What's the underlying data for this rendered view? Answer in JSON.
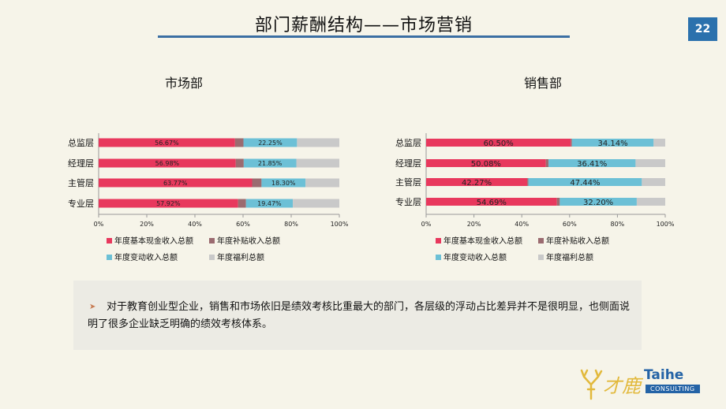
{
  "slide": {
    "title": "部门薪酬结构——市场营销",
    "page_number": "22"
  },
  "note": {
    "text": "对于教育创业型企业，销售和市场依旧是绩效考核比重最大的部门，各层级的浮动占比差异并不是很明显，也侧面说明了很多企业缺乏明确的绩效考核体系。"
  },
  "logo": {
    "cn_text": "才鹿",
    "en_text": "Taihe",
    "sub_text": "CONSULTING"
  },
  "colors": {
    "basic": "#e8385d",
    "allowance": "#9b6b70",
    "variable": "#6cc0d6",
    "welfare": "#c9c9c9"
  },
  "chart_data": [
    {
      "type": "bar",
      "orientation": "horizontal",
      "stacked": true,
      "title": "市场部",
      "categories": [
        "总监层",
        "经理层",
        "主管层",
        "专业层"
      ],
      "series": [
        {
          "name": "年度基本现金收入总额",
          "values": [
            56.67,
            56.98,
            63.77,
            57.92
          ],
          "labels": [
            "56.67%",
            "56.98%",
            "63.77%",
            "57.92%"
          ]
        },
        {
          "name": "年度补贴收入总额",
          "values": [
            3.5,
            3.3,
            3.9,
            3.3
          ],
          "labels": [
            "",
            "",
            "",
            ""
          ]
        },
        {
          "name": "年度变动收入总额",
          "values": [
            22.25,
            21.85,
            18.3,
            19.47
          ],
          "labels": [
            "22.25%",
            "21.85%",
            "18.30%",
            "19.47%"
          ]
        },
        {
          "name": "年度福利总额",
          "values": [
            17.58,
            17.87,
            14.03,
            19.31
          ],
          "labels": [
            "",
            "",
            "",
            ""
          ]
        }
      ],
      "xlim": [
        0,
        100
      ],
      "xticks": [
        "0%",
        "20%",
        "40%",
        "60%",
        "80%",
        "100%"
      ],
      "legend": "bottom"
    },
    {
      "type": "bar",
      "orientation": "horizontal",
      "stacked": true,
      "title": "销售部",
      "categories": [
        "总监层",
        "经理层",
        "主管层",
        "专业层"
      ],
      "series": [
        {
          "name": "年度基本现金收入总额",
          "values": [
            60.5,
            50.08,
            42.27,
            54.69
          ],
          "labels": [
            "60.50%",
            "50.08%",
            "42.27%",
            "54.69%"
          ]
        },
        {
          "name": "年度补贴收入总额",
          "values": [
            0.5,
            1.1,
            0.5,
            1.2
          ],
          "labels": [
            "",
            "",
            "",
            ""
          ]
        },
        {
          "name": "年度变动收入总额",
          "values": [
            34.14,
            36.41,
            47.44,
            32.2
          ],
          "labels": [
            "34.14%",
            "36.41%",
            "47.44%",
            "32.20%"
          ]
        },
        {
          "name": "年度福利总额",
          "values": [
            4.86,
            12.41,
            9.79,
            11.91
          ],
          "labels": [
            "",
            "",
            "",
            ""
          ]
        }
      ],
      "xlim": [
        0,
        100
      ],
      "xticks": [
        "0%",
        "20%",
        "40%",
        "60%",
        "80%",
        "100%"
      ],
      "legend": "bottom"
    }
  ]
}
